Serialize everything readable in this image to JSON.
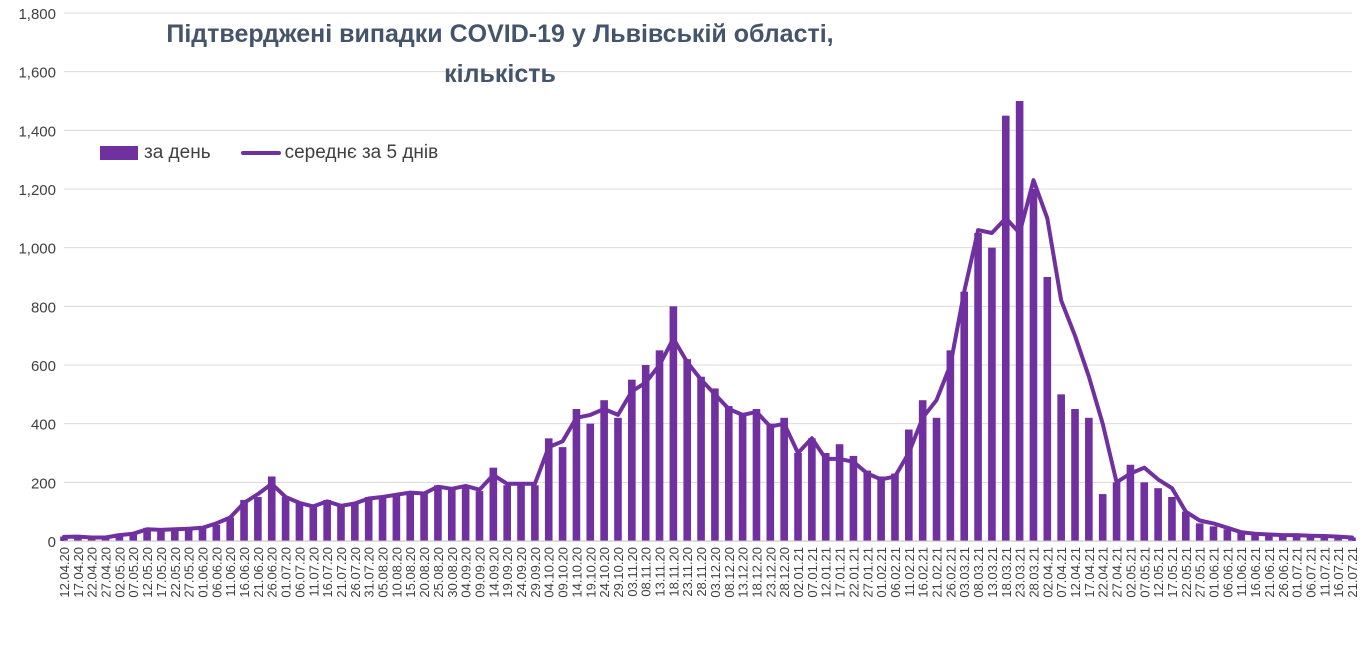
{
  "chart_data": {
    "type": "bar",
    "title_line1": "Підтверджені випадки COVID-19 у Львівській області,",
    "title_line2": "кількість",
    "xlabel": "",
    "ylabel": "",
    "ylim": [
      0,
      1800
    ],
    "yticks": [
      "0",
      "200",
      "400",
      "600",
      "800",
      "1,000",
      "1,200",
      "1,400",
      "1,600",
      "1,800"
    ],
    "ytick_values": [
      0,
      200,
      400,
      600,
      800,
      1000,
      1200,
      1400,
      1600,
      1800
    ],
    "x_tick_labels": [
      "12.04.20",
      "17.04.20",
      "22.04.20",
      "27.04.20",
      "02.05.20",
      "07.05.20",
      "12.05.20",
      "17.05.20",
      "22.05.20",
      "27.05.20",
      "01.06.20",
      "06.06.20",
      "11.06.20",
      "16.06.20",
      "21.06.20",
      "26.06.20",
      "01.07.20",
      "06.07.20",
      "11.07.20",
      "16.07.20",
      "21.07.20",
      "26.07.20",
      "31.07.20",
      "05.08.20",
      "10.08.20",
      "15.08.20",
      "20.08.20",
      "25.08.20",
      "30.08.20",
      "04.09.20",
      "09.09.20",
      "14.09.20",
      "19.09.20",
      "24.09.20",
      "29.09.20",
      "04.10.20",
      "09.10.20",
      "14.10.20",
      "19.10.20",
      "24.10.20",
      "29.10.20",
      "03.11.20",
      "08.11.20",
      "13.11.20",
      "18.11.20",
      "23.11.20",
      "28.11.20",
      "03.12.20",
      "08.12.20",
      "13.12.20",
      "18.12.20",
      "23.12.20",
      "28.12.20",
      "02.01.21",
      "07.01.21",
      "12.01.21",
      "17.01.21",
      "22.01.21",
      "27.01.21",
      "01.02.21",
      "06.02.21",
      "11.02.21",
      "16.02.21",
      "21.02.21",
      "26.02.21",
      "03.03.21",
      "08.03.21",
      "13.03.21",
      "18.03.21",
      "23.03.21",
      "28.03.21",
      "02.04.21",
      "07.04.21",
      "12.04.21",
      "17.04.21",
      "22.04.21",
      "27.04.21",
      "02.05.21",
      "07.05.21",
      "12.05.21",
      "17.05.21",
      "22.05.21",
      "27.05.21",
      "01.06.21",
      "06.06.21",
      "11.06.21",
      "16.06.21",
      "21.06.21",
      "26.06.21",
      "01.07.21",
      "06.07.21",
      "11.07.21",
      "16.07.21",
      "21.07.21"
    ],
    "series": [
      {
        "name": "за день",
        "type": "bar",
        "color": "#7030A0",
        "values_every_5_days": [
          15,
          18,
          12,
          10,
          25,
          30,
          45,
          35,
          40,
          42,
          45,
          55,
          80,
          140,
          150,
          220,
          150,
          130,
          120,
          140,
          125,
          130,
          150,
          150,
          160,
          170,
          165,
          190,
          180,
          190,
          170,
          250,
          190,
          200,
          190,
          350,
          320,
          450,
          400,
          480,
          420,
          550,
          600,
          650,
          800,
          620,
          560,
          520,
          460,
          430,
          450,
          400,
          420,
          300,
          350,
          300,
          330,
          290,
          240,
          220,
          230,
          380,
          480,
          420,
          650,
          850,
          1050,
          1000,
          1450,
          1500,
          1200,
          900,
          500,
          450,
          420,
          160,
          200,
          260,
          200,
          180,
          150,
          100,
          60,
          50,
          40,
          35,
          30,
          25,
          20,
          20,
          15,
          18,
          15,
          12
        ]
      },
      {
        "name": "середнє за 5 днів",
        "type": "line",
        "color": "#7030A0",
        "values_every_5_days": [
          14,
          15,
          12,
          12,
          20,
          25,
          40,
          38,
          40,
          42,
          45,
          60,
          80,
          130,
          160,
          195,
          150,
          130,
          118,
          135,
          120,
          128,
          145,
          150,
          158,
          165,
          162,
          185,
          178,
          188,
          175,
          225,
          195,
          195,
          195,
          320,
          340,
          420,
          430,
          450,
          430,
          510,
          540,
          600,
          690,
          610,
          550,
          500,
          450,
          430,
          440,
          390,
          400,
          300,
          350,
          280,
          280,
          270,
          230,
          210,
          220,
          300,
          420,
          480,
          600,
          850,
          1060,
          1050,
          1100,
          1050,
          1230,
          1100,
          820,
          700,
          560,
          400,
          200,
          230,
          250,
          210,
          180,
          100,
          70,
          60,
          45,
          30,
          25,
          22,
          20,
          20,
          18,
          17,
          15,
          12
        ]
      }
    ],
    "legend_position": "top-left",
    "grid": "y"
  }
}
